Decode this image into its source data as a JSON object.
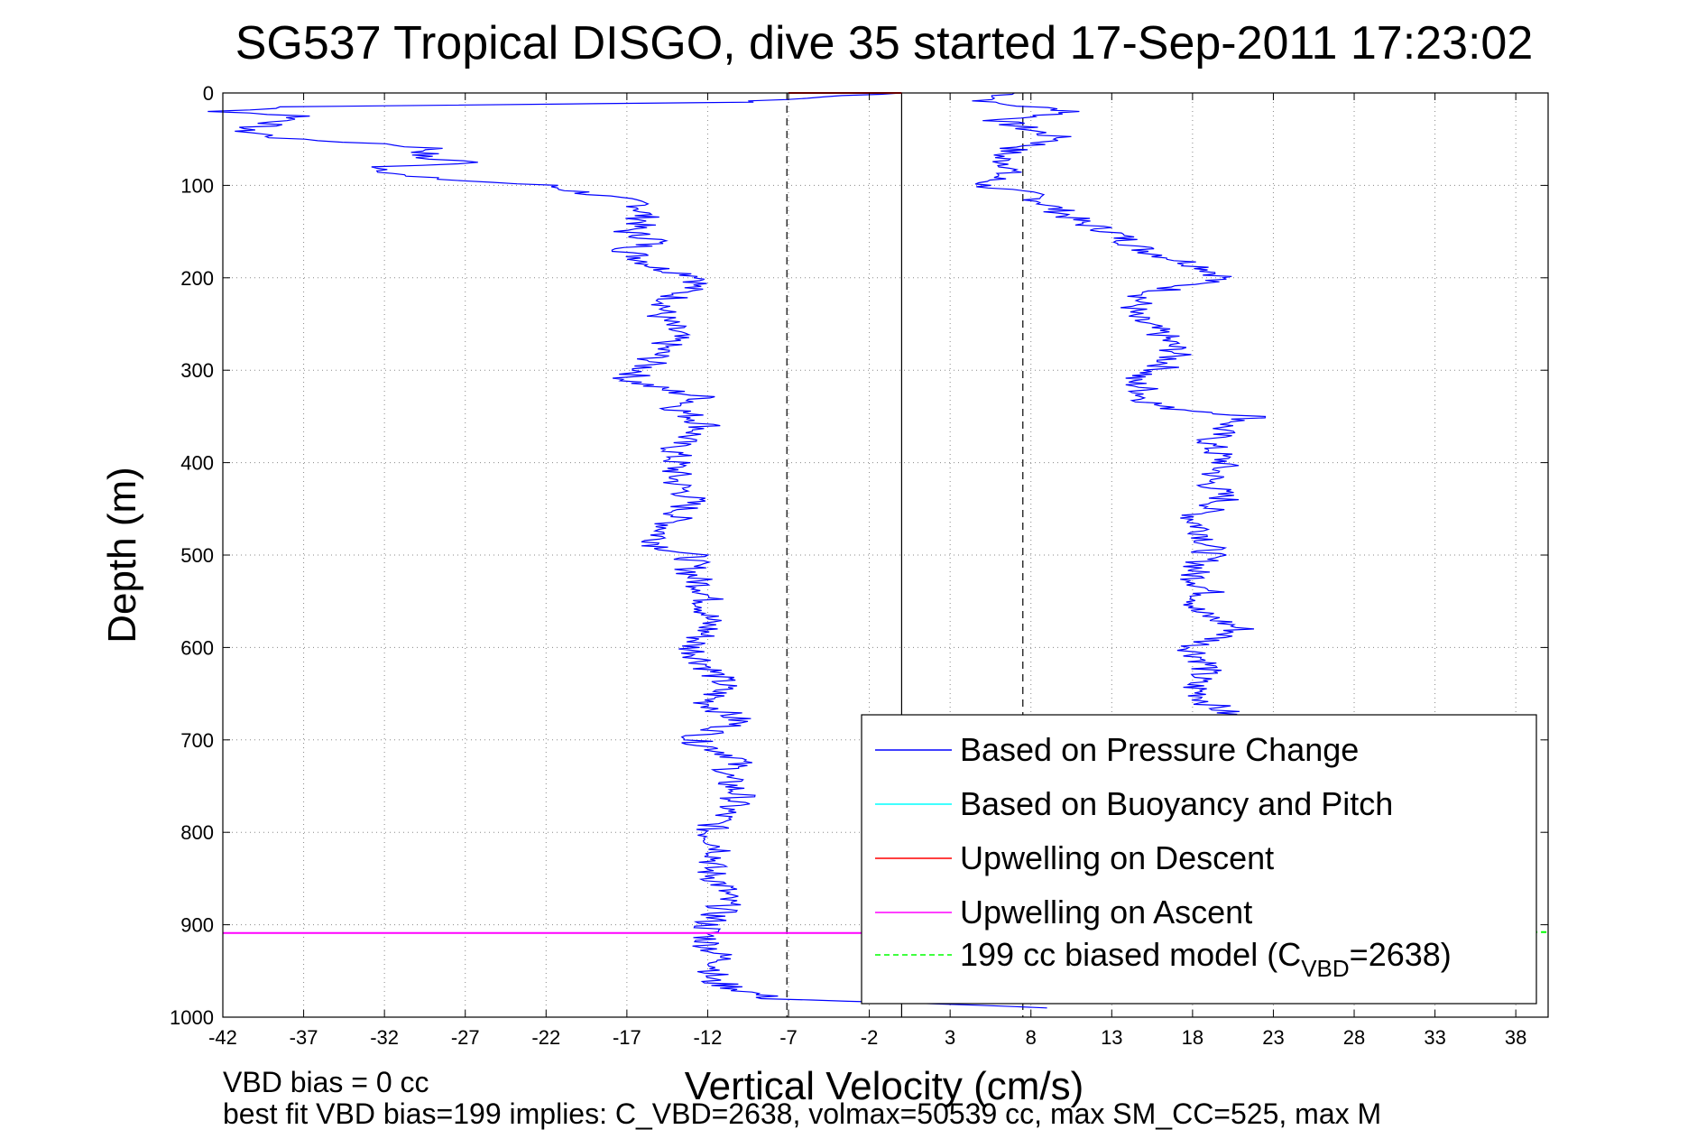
{
  "chart_data": {
    "type": "line",
    "title": "SG537 Tropical DISGO, dive 35 started 17-Sep-2011 17:23:02",
    "xlabel": "Vertical Velocity (cm/s)",
    "ylabel": "Depth (m)",
    "xlim": [
      -42,
      40
    ],
    "ylim": [
      0,
      1000
    ],
    "y_reversed": true,
    "grid": true,
    "legend_placement": "bottom-right",
    "x_ticks": [
      -42,
      -37,
      -32,
      -27,
      -22,
      -17,
      -12,
      -7,
      -2,
      3,
      8,
      13,
      18,
      23,
      28,
      33,
      38
    ],
    "y_ticks": [
      0,
      100,
      200,
      300,
      400,
      500,
      600,
      700,
      800,
      900,
      1000
    ],
    "legend": [
      {
        "label": "Based on Pressure Change",
        "color": "#0000ff",
        "style": "solid"
      },
      {
        "label": "Based on Buoyancy and Pitch",
        "color": "#00ffff",
        "style": "solid"
      },
      {
        "label": "Upwelling on Descent",
        "color": "#ff0000",
        "style": "solid"
      },
      {
        "label": "Upwelling on Ascent",
        "color": "#ff00ff",
        "style": "solid"
      },
      {
        "label": "199 cc biased model (C",
        "sub": "VBD",
        "suffix": "=2638)",
        "color": "#00ff00",
        "style": "dashed"
      }
    ],
    "series": [
      {
        "name": "Based on Pressure Change",
        "color": "#0000ff",
        "descent": {
          "depth": [
            0,
            10,
            15,
            20,
            25,
            30,
            40,
            50,
            55,
            60,
            70,
            75,
            80,
            90,
            95,
            100,
            110,
            120,
            130,
            140,
            150,
            160,
            170,
            180,
            190,
            200,
            220,
            240,
            260,
            280,
            300,
            310,
            320,
            330,
            340,
            350,
            360,
            380,
            400,
            420,
            440,
            460,
            480,
            490,
            500,
            520,
            540,
            560,
            580,
            600,
            620,
            640,
            660,
            680,
            700,
            720,
            740,
            760,
            780,
            800,
            820,
            840,
            860,
            880,
            900,
            920,
            940,
            960,
            970,
            980,
            990
          ],
          "velocity": [
            0,
            -10,
            -38,
            -42,
            -37,
            -38,
            -41,
            -38,
            -32,
            -29,
            -30,
            -26,
            -32,
            -31,
            -27,
            -22,
            -19,
            -16,
            -16,
            -16,
            -17,
            -15,
            -17,
            -16,
            -15,
            -12,
            -14,
            -15,
            -14,
            -15,
            -16,
            -17,
            -15,
            -12,
            -14,
            -13,
            -12,
            -14,
            -14,
            -14,
            -13,
            -14,
            -15,
            -15,
            -13,
            -13,
            -12,
            -12,
            -12,
            -13,
            -12,
            -11,
            -12,
            -10,
            -13,
            -10,
            -11,
            -10,
            -11,
            -12,
            -11,
            -12,
            -11,
            -11,
            -12,
            -12,
            -11,
            -12,
            -10,
            -8,
            9
          ]
        },
        "ascent": {
          "depth": [
            0,
            10,
            20,
            30,
            40,
            50,
            60,
            70,
            80,
            90,
            100,
            110,
            120,
            130,
            140,
            150,
            160,
            170,
            180,
            190,
            200,
            210,
            220,
            240,
            260,
            280,
            300,
            310,
            320,
            330,
            340,
            350,
            360,
            380,
            400,
            420,
            440,
            460,
            480,
            500,
            520,
            540,
            560,
            580,
            600,
            620,
            640,
            660,
            680
          ],
          "velocity": [
            7,
            5,
            11,
            6,
            8,
            10,
            7,
            6,
            7,
            6,
            5,
            8,
            9,
            10,
            11,
            13,
            14,
            15,
            17,
            19,
            20,
            17,
            15,
            14,
            16,
            17,
            16,
            14,
            15,
            15,
            16,
            22,
            20,
            19,
            20,
            19,
            20,
            18,
            19,
            19,
            18,
            19,
            18,
            21,
            18,
            19,
            18,
            19,
            21
          ]
        }
      },
      {
        "name": "Upwelling on Descent",
        "color": "#ff0000",
        "depth": [
          0,
          0
        ],
        "velocity": [
          -7,
          0
        ]
      },
      {
        "name": "Upwelling on Ascent",
        "color": "#ff00ff",
        "depth": [
          909,
          909
        ],
        "velocity": [
          -42,
          -2
        ]
      },
      {
        "name": "199 cc biased model (C_VBD=2638)",
        "color": "#00ff00",
        "depth": [
          908,
          908
        ],
        "velocity": [
          39,
          40
        ]
      }
    ],
    "reference_lines": {
      "solid_x": [
        0
      ],
      "dashed_x": [
        -7.1,
        7.5
      ]
    },
    "annotations": [
      "VBD bias = 0 cc",
      "best fit VBD bias=199 implies: C_VBD=2638, volmax=50539 cc, max SM_CC=525, max M"
    ]
  }
}
